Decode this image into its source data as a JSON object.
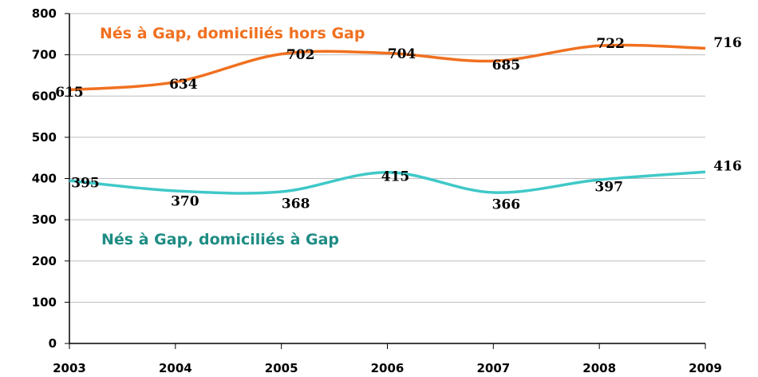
{
  "chart_data": {
    "type": "line",
    "x": [
      2003,
      2004,
      2005,
      2006,
      2007,
      2008,
      2009
    ],
    "series": [
      {
        "name": "Nés à Gap, domiciliés hors Gap",
        "color": "#f07020",
        "values": [
          615,
          634,
          702,
          704,
          685,
          722,
          716
        ]
      },
      {
        "name": "Nés à Gap, domiciliés à Gap",
        "color": "#40c8c8",
        "values": [
          395,
          370,
          368,
          415,
          366,
          397,
          416
        ]
      }
    ],
    "xlim": [
      2003,
      2009
    ],
    "xticks": [
      2003,
      2004,
      2005,
      2006,
      2007,
      2008,
      2009
    ],
    "ylim": [
      0,
      800
    ],
    "yticks": [
      0,
      100,
      200,
      300,
      400,
      500,
      600,
      700,
      800
    ],
    "grid": true
  }
}
